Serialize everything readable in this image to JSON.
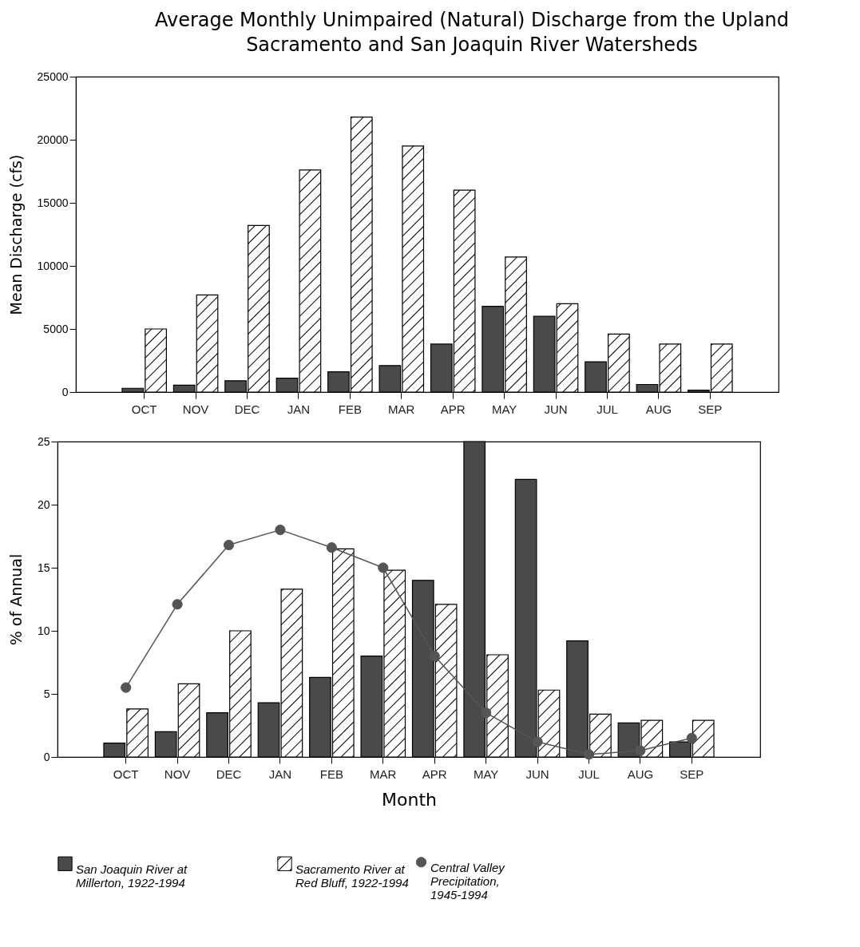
{
  "chart_data": [
    {
      "type": "bar",
      "title": "Average Monthly Unimpaired (Natural) Discharge from the Upland Sacramento and San Joaquin River Watersheds",
      "ylabel": "Mean Discharge (cfs)",
      "categories": [
        "OCT",
        "NOV",
        "DEC",
        "JAN",
        "FEB",
        "MAR",
        "APR",
        "MAY",
        "JUN",
        "JUL",
        "AUG",
        "SEP"
      ],
      "series": [
        {
          "color": "#4a4a4a",
          "values": [
            300,
            550,
            900,
            1100,
            1600,
            2100,
            3800,
            6800,
            6000,
            2400,
            600,
            150
          ]
        },
        {
          "color": "#000000",
          "values": [
            5000,
            7700,
            13200,
            17600,
            21800,
            19500,
            16000,
            10700,
            7000,
            4600,
            3800,
            3800
          ]
        }
      ],
      "ylim": [
        0,
        25000
      ],
      "yticks": [
        0,
        5000,
        10000,
        15000,
        20000,
        25000
      ]
    },
    {
      "type": "bar",
      "xlabel": "Month",
      "ylabel": "% of Annual",
      "categories": [
        "OCT",
        "NOV",
        "DEC",
        "JAN",
        "FEB",
        "MAR",
        "APR",
        "MAY",
        "JUN",
        "JUL",
        "AUG",
        "SEP"
      ],
      "series": [
        {
          "name": "San Joaquin River at Millerton, 1922-1994",
          "color": "#4a4a4a",
          "values": [
            1.1,
            2.0,
            3.5,
            4.3,
            6.3,
            8.0,
            14.0,
            25,
            22.0,
            9.2,
            2.7,
            1.2
          ]
        },
        {
          "name": "Sacramento River at Red Bluff, 1922-1994",
          "color": "#000000",
          "values": [
            3.8,
            5.8,
            10.0,
            13.3,
            16.5,
            14.8,
            12.1,
            8.1,
            5.3,
            3.4,
            2.9,
            2.9
          ]
        },
        {
          "name": "Central Valley Precipitation, 1945-1994",
          "type": "line",
          "color": "#555555",
          "marker": "circle",
          "line_style": "solid",
          "values": [
            5.5,
            12.1,
            16.8,
            18.0,
            16.6,
            15.0,
            8.0,
            3.5,
            1.2,
            0.2,
            0.5,
            1.5
          ]
        }
      ],
      "ylim": [
        0,
        25
      ],
      "yticks": [
        0,
        5,
        10,
        15,
        20,
        25
      ],
      "legend": "bottom"
    }
  ]
}
